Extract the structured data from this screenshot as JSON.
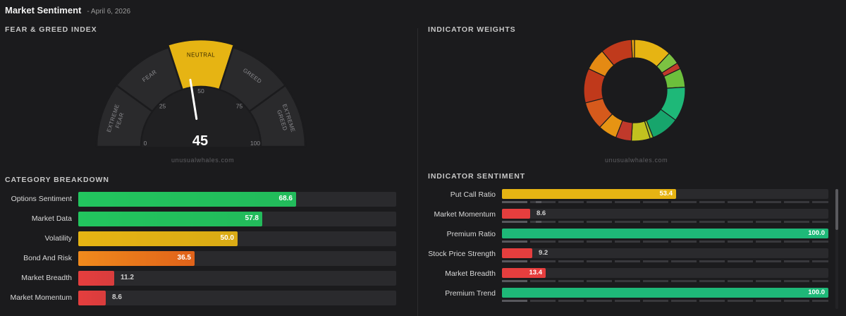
{
  "header": {
    "title": "Market Sentiment",
    "date": "- April 6, 2026"
  },
  "fear_greed": {
    "label": "FEAR & GREED INDEX",
    "value": 45,
    "value_text": "45",
    "zones": [
      "EXTREME FEAR",
      "FEAR",
      "NEUTRAL",
      "GREED",
      "EXTREME GREED"
    ],
    "ticks": [
      "0",
      "25",
      "50",
      "75",
      "100"
    ],
    "active_zone": "NEUTRAL",
    "colors": {
      "zone": "#2a2a2c",
      "active": "#e6b413",
      "needle": "#ffffff",
      "inner": "#232325"
    }
  },
  "watermark": "unusualwhales.com",
  "weights": {
    "label": "INDICATOR WEIGHTS",
    "segments": [
      {
        "color": "#e6b413",
        "value": 12
      },
      {
        "color": "#7cc242",
        "value": 4
      },
      {
        "color": "#c0392b",
        "value": 2
      },
      {
        "color": "#6cbf3c",
        "value": 6
      },
      {
        "color": "#1eb878",
        "value": 11
      },
      {
        "color": "#17a56c",
        "value": 9
      },
      {
        "color": "#a8c22a",
        "value": 1
      },
      {
        "color": "#c2c21f",
        "value": 6
      },
      {
        "color": "#c0392b",
        "value": 5
      },
      {
        "color": "#e69413",
        "value": 6
      },
      {
        "color": "#d65a1c",
        "value": 9
      },
      {
        "color": "#c0391b",
        "value": 11
      },
      {
        "color": "#e58a13",
        "value": 7
      },
      {
        "color": "#c03a1c",
        "value": 10
      },
      {
        "color": "#e6a013",
        "value": 1
      }
    ]
  },
  "category": {
    "label": "CATEGORY BREAKDOWN",
    "rows": [
      {
        "name": "Options Sentiment",
        "value": 68.6,
        "text": "68.6",
        "color": "#22c55e"
      },
      {
        "name": "Market Data",
        "value": 57.8,
        "text": "57.8",
        "color": "#22c55e"
      },
      {
        "name": "Volatility",
        "value": 50.0,
        "text": "50.0",
        "color": "#e6b413"
      },
      {
        "name": "Bond And Risk",
        "value": 36.5,
        "text": "36.5",
        "color": "#ef7a1a"
      },
      {
        "name": "Market Breadth",
        "value": 11.2,
        "text": "11.2",
        "color": "#e53e3e"
      },
      {
        "name": "Market Momentum",
        "value": 8.6,
        "text": "8.6",
        "color": "#e53e3e"
      }
    ]
  },
  "indicators": {
    "label": "INDICATOR SENTIMENT",
    "rows": [
      {
        "name": "Put Call Ratio",
        "value": 53.4,
        "text": "53.4",
        "color": "#e6b413"
      },
      {
        "name": "Market Momentum",
        "value": 8.6,
        "text": "8.6",
        "color": "#e53e3e"
      },
      {
        "name": "Premium Ratio",
        "value": 100.0,
        "text": "100.0",
        "color": "#1eb878"
      },
      {
        "name": "Stock Price Strength",
        "value": 9.2,
        "text": "9.2",
        "color": "#e53e3e"
      },
      {
        "name": "Market Breadth",
        "value": 13.4,
        "text": "13.4",
        "color": "#e53e3e"
      },
      {
        "name": "Premium Trend",
        "value": 100.0,
        "text": "100.0",
        "color": "#1eb878"
      }
    ]
  }
}
